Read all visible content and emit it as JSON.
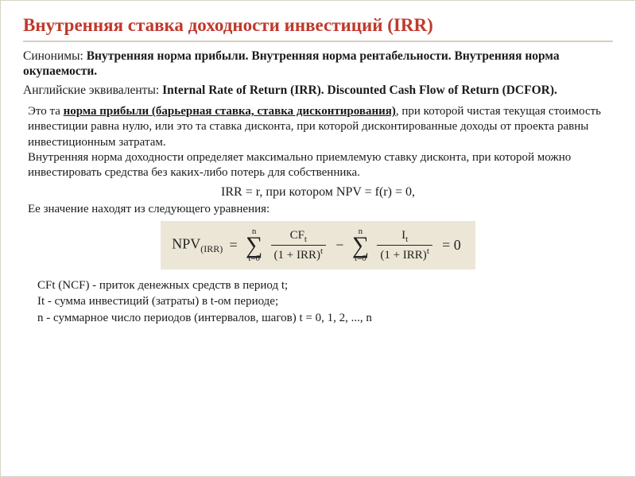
{
  "colors": {
    "title": "#c0392b",
    "rule": "#d6cfbc",
    "text": "#1a1a1a",
    "formula_bg": "#ece6d6",
    "page_bg": "#ffffff"
  },
  "typography": {
    "body_family": "Georgia",
    "title_size_pt": 17,
    "body_size_pt": 12
  },
  "title": "Внутренняя ставка доходности инвестиций (IRR)",
  "synonyms": {
    "label": "Синонимы: ",
    "text": "Внутренняя норма прибыли. Внутренняя норма рентабельности. Внутренняя норма окупаемости."
  },
  "english": {
    "label": "Английские эквиваленты: ",
    "text": "Internal Rate of Return (IRR). Discounted Cash Flow of Return (DCFOR)."
  },
  "definition": {
    "lead": "Это та ",
    "underlined": "норма прибыли (барьерная ставка, ставка дисконтирования)",
    "rest": ", при которой чистая текущая стоимость инвестиции равна нулю, или это та ставка дисконта, при которой дисконтированные доходы от проекта равны инвестиционным затратам."
  },
  "definition2": "Внутренняя норма доходности определяет максимально приемлемую ставку дисконта, при которой можно инвестировать средства без каких-либо потерь для собственника.",
  "eq_simple": "IRR = r, при котором NPV = f(r) = 0,",
  "lead_eq": "Ее значение находят из следующего уравнения:",
  "formula": {
    "lhs": "NPV",
    "lhs_sub": "(IRR)",
    "eq": "=",
    "sum_top": "n",
    "sum_bot": "t=0",
    "frac1_num": "CFₜ",
    "frac1_num_plain_a": "CF",
    "frac1_num_plain_b": "t",
    "frac2_num_plain_a": "I",
    "frac2_num_plain_b": "t",
    "den_a": "(1 + IRR)",
    "den_exp": "t",
    "minus": "−",
    "rhs": "= 0"
  },
  "legend": {
    "l1": "CFt (NCF) - приток денежных средств в период t;",
    "l2": "It - сумма инвестиций (затраты) в t-ом периоде;",
    "l3": "n - суммарное число периодов (интервалов, шагов) t = 0, 1, 2, ..., n"
  }
}
